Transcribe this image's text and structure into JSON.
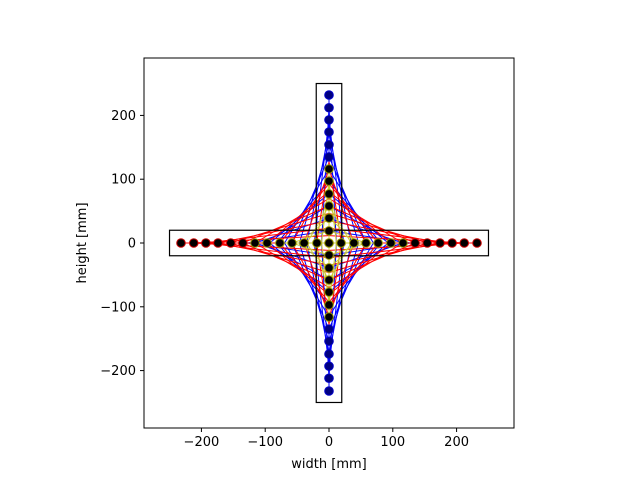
{
  "chart_data": {
    "type": "scatter",
    "title": "",
    "xlabel": "width [mm]",
    "ylabel": "height [mm]",
    "xlim": [
      -290,
      290
    ],
    "ylim": [
      -290,
      290
    ],
    "aspect": "equal",
    "grid": false,
    "x_ticks": [
      -200,
      -100,
      0,
      100,
      200
    ],
    "y_ticks": [
      -200,
      -100,
      0,
      100,
      200
    ],
    "x_tick_labels": [
      "−200",
      "−100",
      "0",
      "100",
      "200"
    ],
    "y_tick_labels": [
      "−200",
      "−100",
      "0",
      "100",
      "200"
    ],
    "rectangles": [
      {
        "x": -250,
        "y": -20,
        "width": 500,
        "height": 40,
        "color": "#000000"
      },
      {
        "x": -20,
        "y": -250,
        "width": 40,
        "height": 500,
        "color": "#000000"
      }
    ],
    "points": {
      "outer_coords": [
        -232,
        -212,
        -193,
        -174,
        -154,
        -135
      ],
      "inner_coords": [
        -116,
        -97,
        -77,
        -58,
        -39,
        -19,
        0,
        19,
        39,
        58,
        77,
        97,
        116
      ],
      "outer_coords_pos": [
        135,
        154,
        174,
        193,
        212,
        232
      ],
      "face_outer": "#000080",
      "face_outer_horizontal": "#000000",
      "face_inner": "#000000",
      "edge_horizontal": "#cc0000",
      "edge_vertical": "#0000cc",
      "edge_inner": "#999900"
    },
    "string_art": [
      {
        "name": "blue",
        "color": "#0000ff",
        "r_end": 232,
        "steps": 12
      },
      {
        "name": "red",
        "color": "#ff0000",
        "r_end": 232,
        "steps": 12,
        "rotated": true
      },
      {
        "name": "yellow",
        "color": "#cccc33",
        "r_end": 116,
        "steps": 6
      }
    ]
  }
}
